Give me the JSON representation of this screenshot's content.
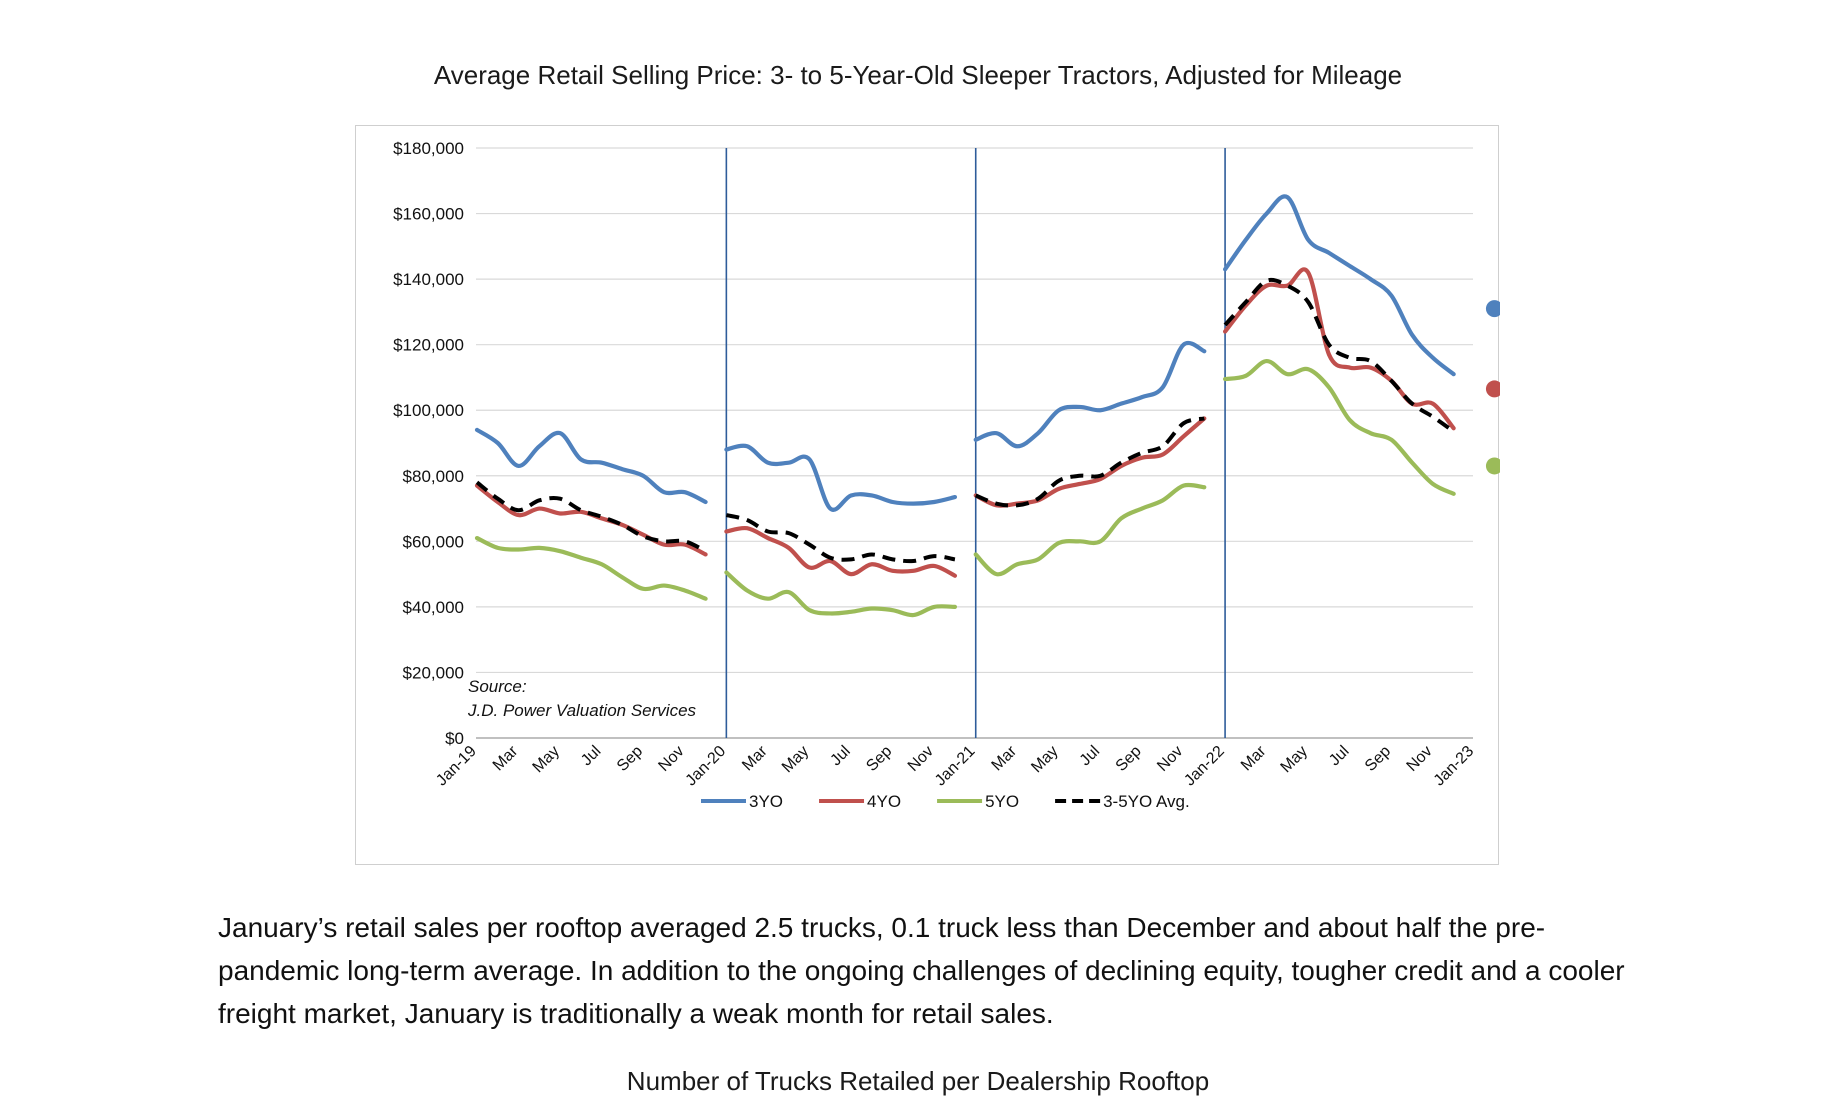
{
  "page": {
    "title": "Average Retail Selling Price: 3- to 5-Year-Old Sleeper Tractors, Adjusted for Mileage",
    "paragraph": "January’s retail sales per rooftop averaged 2.5 trucks, 0.1 truck less than December and about half the pre-pandemic long-term average. In addition to the ongoing challenges of declining equity, tougher credit and a cooler freight market, January is traditionally a weak month for retail sales.",
    "next_title": "Number of Trucks Retailed per Dealership Rooftop"
  },
  "chart_data": {
    "type": "line",
    "title": "",
    "xlabel": "",
    "ylabel": "",
    "ylim": [
      0,
      180000
    ],
    "y_ticks": [
      "$0",
      "$20,000",
      "$40,000",
      "$60,000",
      "$80,000",
      "$100,000",
      "$120,000",
      "$140,000",
      "$160,000",
      "$180,000"
    ],
    "x_tick_labels": [
      "Jan-19",
      "Mar",
      "May",
      "Jul",
      "Sep",
      "Nov",
      "Jan-20",
      "Mar",
      "May",
      "Jul",
      "Sep",
      "Nov",
      "Jan-21",
      "Mar",
      "May",
      "Jul",
      "Sep",
      "Nov",
      "Jan-22",
      "Mar",
      "May",
      "Jul",
      "Sep",
      "Nov",
      "Jan-23"
    ],
    "year_dividers": [
      "Jan-20",
      "Jan-21",
      "Jan-22"
    ],
    "grid": true,
    "legend_position": "bottom",
    "source_note": [
      "Source:",
      "J.D. Power Valuation Services"
    ],
    "series": [
      {
        "name": "3YO",
        "color": "#4f81bd",
        "style": "solid",
        "values": [
          94000,
          90000,
          83000,
          89000,
          93000,
          85000,
          84000,
          82000,
          80000,
          75000,
          75000,
          72000,
          88000,
          89000,
          84000,
          84000,
          85000,
          70000,
          74000,
          74000,
          72000,
          71500,
          72000,
          73500,
          91000,
          93000,
          89000,
          93000,
          100000,
          101000,
          100000,
          102000,
          104000,
          107000,
          120000,
          118000,
          143000,
          152000,
          160000,
          165000,
          152000,
          148000,
          144000,
          140000,
          135000,
          123000,
          116000,
          111000
        ],
        "dot": {
          "label": "Jan-23",
          "value": 131000
        }
      },
      {
        "name": "4YO",
        "color": "#c0504d",
        "style": "solid",
        "values": [
          77000,
          72000,
          68000,
          70000,
          68500,
          69000,
          67000,
          65000,
          62000,
          59000,
          59000,
          56000,
          63000,
          64000,
          61000,
          58000,
          52000,
          54000,
          50000,
          53000,
          51000,
          51000,
          52500,
          49500,
          74000,
          71000,
          71500,
          72500,
          76000,
          77500,
          79000,
          83000,
          85500,
          86500,
          92000,
          97500,
          124000,
          132000,
          138000,
          138000,
          142000,
          117000,
          113000,
          113000,
          109000,
          102000,
          102000,
          94500
        ],
        "dot": {
          "label": "Jan-23",
          "value": 106500
        }
      },
      {
        "name": "5YO",
        "color": "#9bbb59",
        "style": "solid",
        "values": [
          61000,
          58000,
          57500,
          58000,
          57000,
          55000,
          53000,
          49000,
          45500,
          46500,
          45000,
          42500,
          50500,
          45000,
          42500,
          44500,
          39000,
          38000,
          38500,
          39500,
          39000,
          37500,
          40000,
          40000,
          56000,
          50000,
          53000,
          54500,
          59500,
          60000,
          60000,
          67000,
          70000,
          72500,
          77000,
          76500,
          109500,
          110500,
          115000,
          111000,
          112500,
          107000,
          97000,
          93000,
          91000,
          84000,
          77500,
          74500
        ],
        "dot": {
          "label": "Jan-23",
          "value": 83000
        }
      },
      {
        "name": "3-5YO Avg.",
        "color": "#000000",
        "style": "dashed",
        "values": [
          78000,
          73000,
          69500,
          72500,
          73000,
          69500,
          67500,
          65000,
          61500,
          60000,
          60000,
          57000,
          68000,
          66500,
          63000,
          62500,
          59000,
          55000,
          54500,
          56000,
          54500,
          54000,
          55500,
          54500,
          74000,
          71500,
          71000,
          73000,
          78500,
          80000,
          80000,
          84000,
          87000,
          89000,
          96000,
          97500,
          126000,
          133000,
          139500,
          138000,
          133000,
          120000,
          116000,
          115000,
          109000,
          102000,
          98000,
          93500
        ]
      }
    ]
  }
}
